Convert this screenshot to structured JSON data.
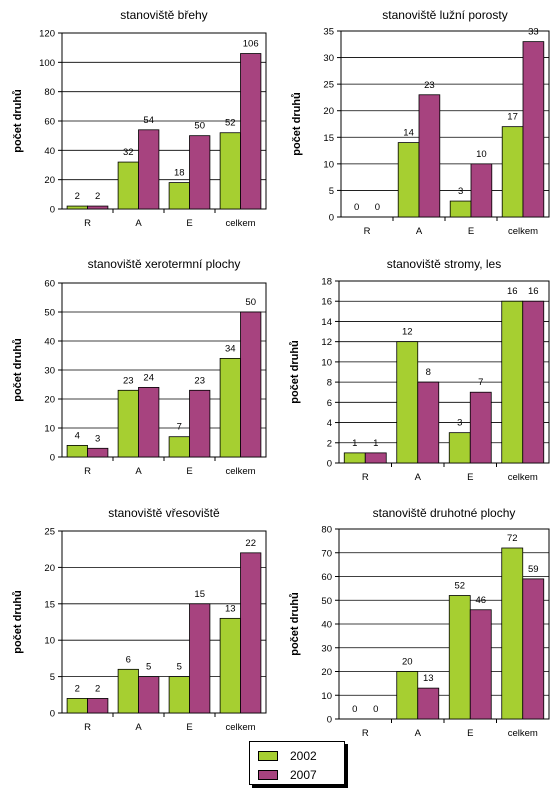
{
  "colors": {
    "s2002": "#a6cf31",
    "s2007": "#a7437f"
  },
  "legend": {
    "items": [
      {
        "label": "2002"
      },
      {
        "label": "2007"
      }
    ]
  },
  "chart_data": [
    {
      "type": "bar",
      "title": "stanoviště břehy",
      "ylabel": "počet druhů",
      "categories": [
        "R",
        "A",
        "E",
        "celkem"
      ],
      "series": [
        {
          "name": "2002",
          "values": [
            2,
            32,
            18,
            52
          ]
        },
        {
          "name": "2007",
          "values": [
            2,
            54,
            50,
            106
          ]
        }
      ],
      "ylim": [
        0,
        120
      ],
      "yticks": [
        0,
        20,
        40,
        60,
        80,
        100,
        120
      ],
      "grid": true
    },
    {
      "type": "bar",
      "title": "stanoviště lužní porosty",
      "ylabel": "počet druhů",
      "categories": [
        "R",
        "A",
        "E",
        "celkem"
      ],
      "series": [
        {
          "name": "2002",
          "values": [
            0,
            14,
            3,
            17
          ]
        },
        {
          "name": "2007",
          "values": [
            0,
            23,
            10,
            33
          ]
        }
      ],
      "ylim": [
        0,
        35
      ],
      "yticks": [
        0,
        5,
        10,
        15,
        20,
        25,
        30,
        35
      ],
      "grid": true
    },
    {
      "type": "bar",
      "title": "stanoviště xerotermní plochy",
      "ylabel": "počet druhů",
      "categories": [
        "R",
        "A",
        "E",
        "celkem"
      ],
      "series": [
        {
          "name": "2002",
          "values": [
            4,
            23,
            7,
            34
          ]
        },
        {
          "name": "2007",
          "values": [
            3,
            24,
            23,
            50
          ]
        }
      ],
      "ylim": [
        0,
        60
      ],
      "yticks": [
        0,
        10,
        20,
        30,
        40,
        50,
        60
      ],
      "grid": true
    },
    {
      "type": "bar",
      "title": "stanoviště stromy, les",
      "ylabel": "počet druhů",
      "categories": [
        "R",
        "A",
        "E",
        "celkem"
      ],
      "series": [
        {
          "name": "2002",
          "values": [
            1,
            12,
            3,
            16
          ]
        },
        {
          "name": "2007",
          "values": [
            1,
            8,
            7,
            16
          ]
        }
      ],
      "ylim": [
        0,
        18
      ],
      "yticks": [
        0,
        2,
        4,
        6,
        8,
        10,
        12,
        14,
        16,
        18
      ],
      "grid": true
    },
    {
      "type": "bar",
      "title": "stanoviště vřesoviště",
      "ylabel": "počet druhů",
      "categories": [
        "R",
        "A",
        "E",
        "celkem"
      ],
      "series": [
        {
          "name": "2002",
          "values": [
            2,
            6,
            5,
            13
          ]
        },
        {
          "name": "2007",
          "values": [
            2,
            5,
            15,
            22
          ]
        }
      ],
      "ylim": [
        0,
        25
      ],
      "yticks": [
        0,
        5,
        10,
        15,
        20,
        25
      ],
      "grid": true
    },
    {
      "type": "bar",
      "title": "stanoviště druhotné plochy",
      "ylabel": "počet druhů",
      "categories": [
        "R",
        "A",
        "E",
        "celkem"
      ],
      "series": [
        {
          "name": "2002",
          "values": [
            0,
            20,
            52,
            72
          ]
        },
        {
          "name": "2007",
          "values": [
            0,
            13,
            46,
            59
          ]
        }
      ],
      "ylim": [
        0,
        80
      ],
      "yticks": [
        0,
        10,
        20,
        30,
        40,
        50,
        60,
        70,
        80
      ],
      "grid": true
    }
  ]
}
